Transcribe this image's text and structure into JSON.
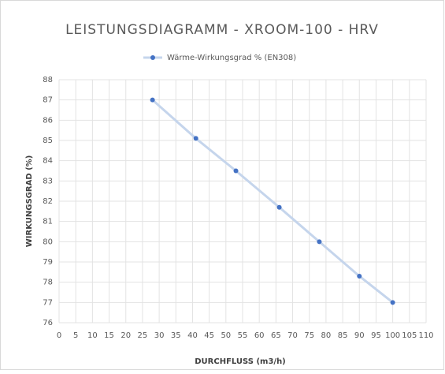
{
  "chart_data": {
    "type": "line",
    "title": "LEISTUNGSDIAGRAMM - XROOM-100 - HRV",
    "xlabel": "DURCHFLUSS (m3/h)",
    "ylabel": "WIRKUNGSGRAD (%)",
    "x": [
      28,
      41,
      53,
      66,
      78,
      90,
      100
    ],
    "series": [
      {
        "name": "Wärme-Wirkungsgrad % (EN308)",
        "line_color": "#c5d5ec",
        "color": "#4472c4",
        "values": [
          87,
          85.1,
          83.5,
          81.7,
          80,
          78.3,
          77
        ]
      }
    ],
    "xlim": [
      0,
      110
    ],
    "xticks": [
      0,
      5,
      10,
      15,
      20,
      25,
      30,
      35,
      40,
      45,
      50,
      55,
      60,
      65,
      70,
      75,
      80,
      85,
      90,
      95,
      100,
      105,
      110
    ],
    "ylim": [
      76,
      88
    ],
    "yticks": [
      76,
      77,
      78,
      79,
      80,
      81,
      82,
      83,
      84,
      85,
      86,
      87,
      88
    ],
    "grid": true,
    "legend": "top"
  }
}
